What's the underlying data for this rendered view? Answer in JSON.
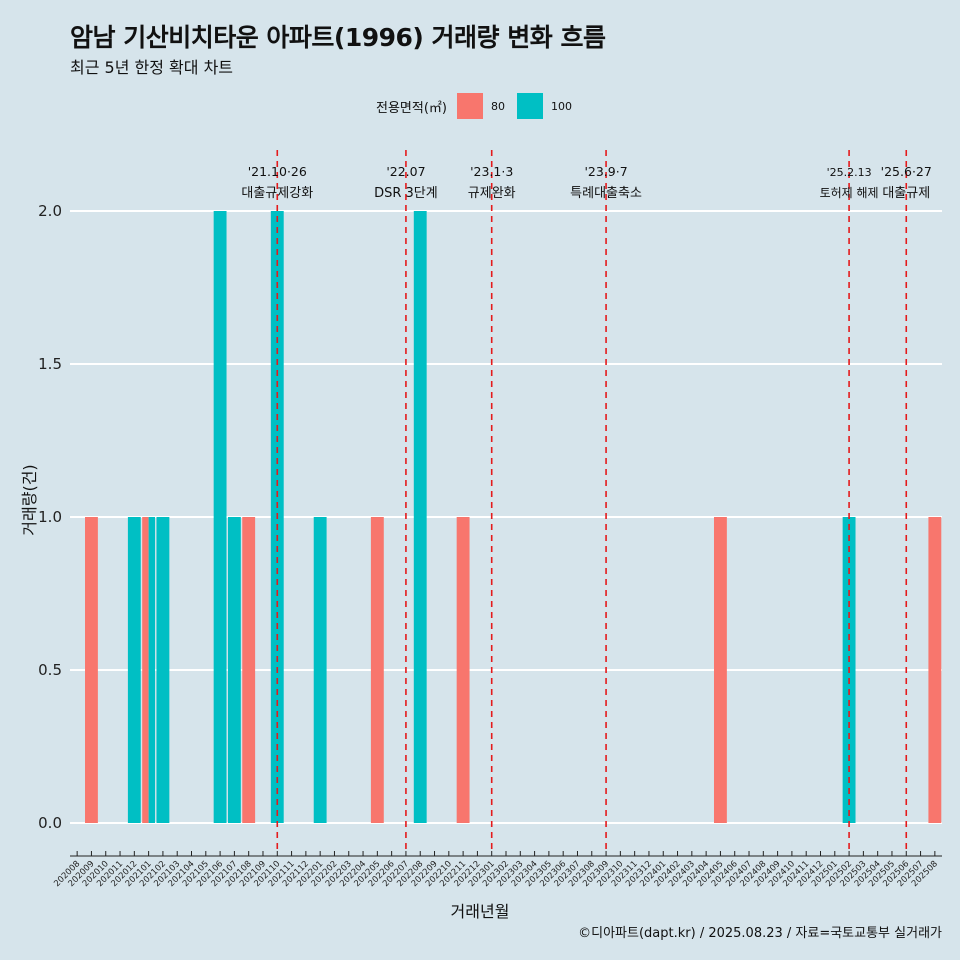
{
  "header": {
    "title": "암남 기산비치타운 아파트(1996) 거래량 변화 흐름",
    "subtitle": "최근 5년 한정 확대 차트"
  },
  "legend": {
    "title": "전용면적(㎡)",
    "items": [
      {
        "label": "80",
        "color": "#f8766d"
      },
      {
        "label": "100",
        "color": "#00bfc4"
      }
    ]
  },
  "caption": "©디아파트(dapt.kr) / 2025.08.23 / 자료=국토교통부 실거래가",
  "chart_data": {
    "type": "bar",
    "xlabel": "거래년월",
    "ylabel": "거래량(건)",
    "ylim": [
      0,
      2
    ],
    "yticks": [
      "0.0",
      "0.5",
      "1.0",
      "1.5",
      "2.0"
    ],
    "grid": true,
    "legend_position": "top",
    "categories": [
      "202008",
      "202009",
      "202010",
      "202011",
      "202012",
      "202101",
      "202102",
      "202103",
      "202104",
      "202105",
      "202106",
      "202107",
      "202108",
      "202109",
      "202110",
      "202111",
      "202112",
      "202201",
      "202202",
      "202203",
      "202204",
      "202205",
      "202206",
      "202207",
      "202208",
      "202209",
      "202210",
      "202211",
      "202212",
      "202301",
      "202302",
      "202303",
      "202304",
      "202305",
      "202306",
      "202307",
      "202308",
      "202309",
      "202310",
      "202311",
      "202312",
      "202401",
      "202402",
      "202403",
      "202404",
      "202405",
      "202406",
      "202407",
      "202408",
      "202409",
      "202410",
      "202411",
      "202412",
      "202501",
      "202502",
      "202503",
      "202504",
      "202505",
      "202506",
      "202507",
      "202508"
    ],
    "series": [
      {
        "name": "80",
        "color": "#f8766d",
        "points": [
          {
            "x": "202009",
            "y": 1
          },
          {
            "x": "202101",
            "y": 1
          },
          {
            "x": "202108",
            "y": 1
          },
          {
            "x": "202205",
            "y": 1
          },
          {
            "x": "202211",
            "y": 1
          },
          {
            "x": "202405",
            "y": 1
          },
          {
            "x": "202508",
            "y": 1
          }
        ]
      },
      {
        "name": "100",
        "color": "#00bfc4",
        "points": [
          {
            "x": "202012",
            "y": 1
          },
          {
            "x": "202101",
            "y": 1
          },
          {
            "x": "202102",
            "y": 1
          },
          {
            "x": "202106",
            "y": 2
          },
          {
            "x": "202107",
            "y": 1
          },
          {
            "x": "202110",
            "y": 2
          },
          {
            "x": "202201",
            "y": 1
          },
          {
            "x": "202208",
            "y": 2
          },
          {
            "x": "202502",
            "y": 1
          }
        ]
      }
    ],
    "annotations": [
      {
        "date_label": "'21.10·26",
        "text": "대출규제강화",
        "x": "202110"
      },
      {
        "date_label": "'22.07",
        "text": "DSR 3단계",
        "x": "202207"
      },
      {
        "date_label": "'23.1·3",
        "text": "규제완화",
        "x": "202301"
      },
      {
        "date_label": "'23.9·7",
        "text": "특례대출축소",
        "x": "202309"
      },
      {
        "date_label": "'25.2.13",
        "text": "토허제 해제",
        "x": "202502"
      },
      {
        "date_label": "'25.6·27",
        "text": "대출규제",
        "x": "202506"
      }
    ]
  }
}
